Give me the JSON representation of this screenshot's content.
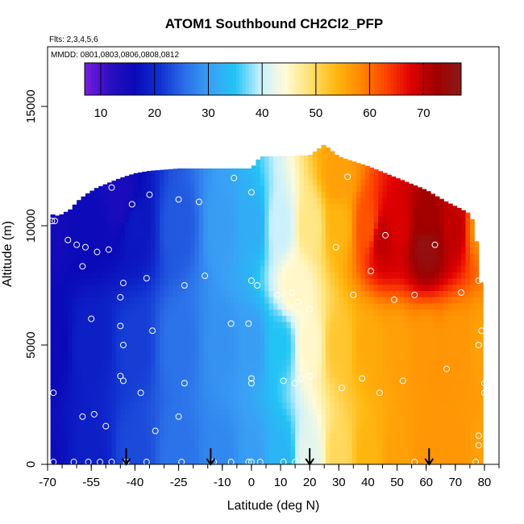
{
  "chart_data": {
    "type": "heatmap",
    "title": "ATOM1 Southbound CH2Cl2_PFP",
    "flights_note": "Flts: 2,3,4,5,6",
    "dates_note": "MMDD: 0801,0803,0806,0808,0812",
    "xlabel": "Latitude (deg N)",
    "ylabel": "Altitude (m)",
    "xlim": [
      -70,
      85
    ],
    "ylim": [
      0,
      17500
    ],
    "x_ticks": [
      -70,
      -55,
      -40,
      -25,
      -10,
      0,
      10,
      20,
      30,
      40,
      50,
      60,
      70,
      80
    ],
    "y_ticks": [
      0,
      5000,
      10000,
      15000
    ],
    "colorbar": {
      "range": [
        7,
        77
      ],
      "ticks": [
        10,
        20,
        30,
        40,
        50,
        60,
        70
      ],
      "colors": [
        "#7a1ce0",
        "#2a0fc0",
        "#0a0ab8",
        "#1030d0",
        "#2b6fe8",
        "#3aa0f5",
        "#22c4f5",
        "#c8f0ff",
        "#fffbd8",
        "#ffe070",
        "#ffb810",
        "#ff8800",
        "#ff4400",
        "#e00000",
        "#a00000",
        "#8b1a1a"
      ]
    },
    "field_points": [
      [
        -69,
        10000,
        15
      ],
      [
        -55,
        10000,
        16
      ],
      [
        -40,
        10000,
        18
      ],
      [
        -25,
        10000,
        24
      ],
      [
        -10,
        10000,
        30
      ],
      [
        0,
        10000,
        32
      ],
      [
        10,
        10000,
        40
      ],
      [
        20,
        10000,
        48
      ],
      [
        30,
        10000,
        54
      ],
      [
        40,
        10000,
        62
      ],
      [
        50,
        10000,
        68
      ],
      [
        60,
        10000,
        72
      ],
      [
        70,
        10000,
        70
      ],
      [
        78,
        10000,
        58
      ],
      [
        -69,
        5000,
        16
      ],
      [
        -55,
        5000,
        19
      ],
      [
        -40,
        5000,
        22
      ],
      [
        -25,
        5000,
        26
      ],
      [
        -10,
        5000,
        29
      ],
      [
        0,
        5000,
        30
      ],
      [
        10,
        5000,
        35
      ],
      [
        20,
        5000,
        45
      ],
      [
        30,
        5000,
        52
      ],
      [
        40,
        5000,
        55
      ],
      [
        50,
        5000,
        56
      ],
      [
        60,
        5000,
        57
      ],
      [
        70,
        5000,
        57
      ],
      [
        80,
        5000,
        56
      ],
      [
        -69,
        300,
        17
      ],
      [
        -55,
        300,
        19
      ],
      [
        -40,
        300,
        23
      ],
      [
        -25,
        300,
        26
      ],
      [
        -10,
        300,
        28
      ],
      [
        0,
        300,
        30
      ],
      [
        10,
        300,
        33
      ],
      [
        20,
        300,
        42
      ],
      [
        30,
        300,
        50
      ],
      [
        40,
        300,
        54
      ],
      [
        50,
        300,
        56
      ],
      [
        60,
        300,
        57
      ],
      [
        70,
        300,
        57
      ],
      [
        80,
        300,
        56
      ],
      [
        15,
        7500,
        45
      ],
      [
        45,
        9500,
        70
      ],
      [
        60,
        9300,
        75
      ],
      [
        30,
        12000,
        56
      ],
      [
        -45,
        11000,
        14
      ]
    ],
    "envelope_top": [
      [
        -69,
        10500
      ],
      [
        -66,
        10400
      ],
      [
        -65,
        10500
      ],
      [
        -62,
        10700
      ],
      [
        -60,
        11000
      ],
      [
        -57,
        11300
      ],
      [
        -53,
        11600
      ],
      [
        -49,
        11800
      ],
      [
        -45,
        12000
      ],
      [
        -40,
        12200
      ],
      [
        -35,
        12300
      ],
      [
        -25,
        12400
      ],
      [
        -15,
        12400
      ],
      [
        -10,
        12400
      ],
      [
        -5,
        12400
      ],
      [
        0,
        12400
      ],
      [
        3,
        12900
      ],
      [
        20,
        12950
      ],
      [
        25,
        13400
      ],
      [
        30,
        12900
      ],
      [
        40,
        12500
      ],
      [
        50,
        12000
      ],
      [
        60,
        11500
      ],
      [
        67,
        11000
      ],
      [
        72,
        10700
      ],
      [
        75,
        10500
      ],
      [
        76,
        10200
      ],
      [
        77,
        9800
      ],
      [
        78,
        8000
      ],
      [
        79,
        7500
      ],
      [
        80,
        5000
      ],
      [
        80,
        0
      ]
    ],
    "sample_points": [
      [
        -68.5,
        10200
      ],
      [
        -67.5,
        10200
      ],
      [
        -63,
        9400
      ],
      [
        -60,
        9200
      ],
      [
        -57,
        9100
      ],
      [
        -53,
        8900
      ],
      [
        -49,
        9000
      ],
      [
        -58,
        8300
      ],
      [
        -48,
        11600
      ],
      [
        -41,
        10900
      ],
      [
        -35,
        11300
      ],
      [
        -25,
        11100
      ],
      [
        -18,
        11000
      ],
      [
        -6,
        12000
      ],
      [
        0,
        11400
      ],
      [
        33,
        12050
      ],
      [
        46,
        9600
      ],
      [
        63,
        9200
      ],
      [
        -44,
        7600
      ],
      [
        -36,
        7800
      ],
      [
        -23,
        7500
      ],
      [
        -16,
        7900
      ],
      [
        0,
        7700
      ],
      [
        2,
        7500
      ],
      [
        9,
        7100
      ],
      [
        14,
        7200
      ],
      [
        16,
        6800
      ],
      [
        20,
        6500
      ],
      [
        35,
        7100
      ],
      [
        41,
        8100
      ],
      [
        49,
        6900
      ],
      [
        56,
        7100
      ],
      [
        72,
        7200
      ],
      [
        78,
        7700
      ],
      [
        -55,
        6100
      ],
      [
        -45,
        7000
      ],
      [
        -45,
        5800
      ],
      [
        -34,
        5600
      ],
      [
        -7,
        5900
      ],
      [
        -1,
        5900
      ],
      [
        29,
        9100
      ],
      [
        -44,
        5000
      ],
      [
        79,
        5600
      ],
      [
        78,
        5000
      ],
      [
        -45,
        3700
      ],
      [
        -44,
        3500
      ],
      [
        -23,
        3400
      ],
      [
        0,
        3600
      ],
      [
        0,
        3400
      ],
      [
        11,
        3500
      ],
      [
        15,
        3400
      ],
      [
        17,
        3600
      ],
      [
        20,
        3700
      ],
      [
        31,
        3200
      ],
      [
        38,
        3600
      ],
      [
        44,
        3000
      ],
      [
        52,
        3500
      ],
      [
        67,
        4000
      ],
      [
        80,
        3400
      ],
      [
        80,
        3000
      ],
      [
        -68,
        3000
      ],
      [
        -38,
        3000
      ],
      [
        -58,
        2000
      ],
      [
        -54,
        2100
      ],
      [
        -50,
        1600
      ],
      [
        -25,
        2000
      ],
      [
        -33,
        1400
      ],
      [
        78,
        1200
      ],
      [
        78,
        800
      ],
      [
        -68,
        100
      ],
      [
        -61,
        100
      ],
      [
        -56,
        100
      ],
      [
        -52,
        100
      ],
      [
        -48,
        100
      ],
      [
        -43,
        100
      ],
      [
        -36,
        100
      ],
      [
        -24,
        100
      ],
      [
        -13,
        100
      ],
      [
        -7,
        100
      ],
      [
        -1,
        100
      ],
      [
        0,
        100
      ],
      [
        3,
        100
      ],
      [
        11,
        100
      ],
      [
        15,
        100
      ],
      [
        18,
        100
      ],
      [
        56,
        100
      ],
      [
        77,
        100
      ]
    ],
    "arrows": [
      -43,
      -14,
      20,
      61
    ]
  }
}
